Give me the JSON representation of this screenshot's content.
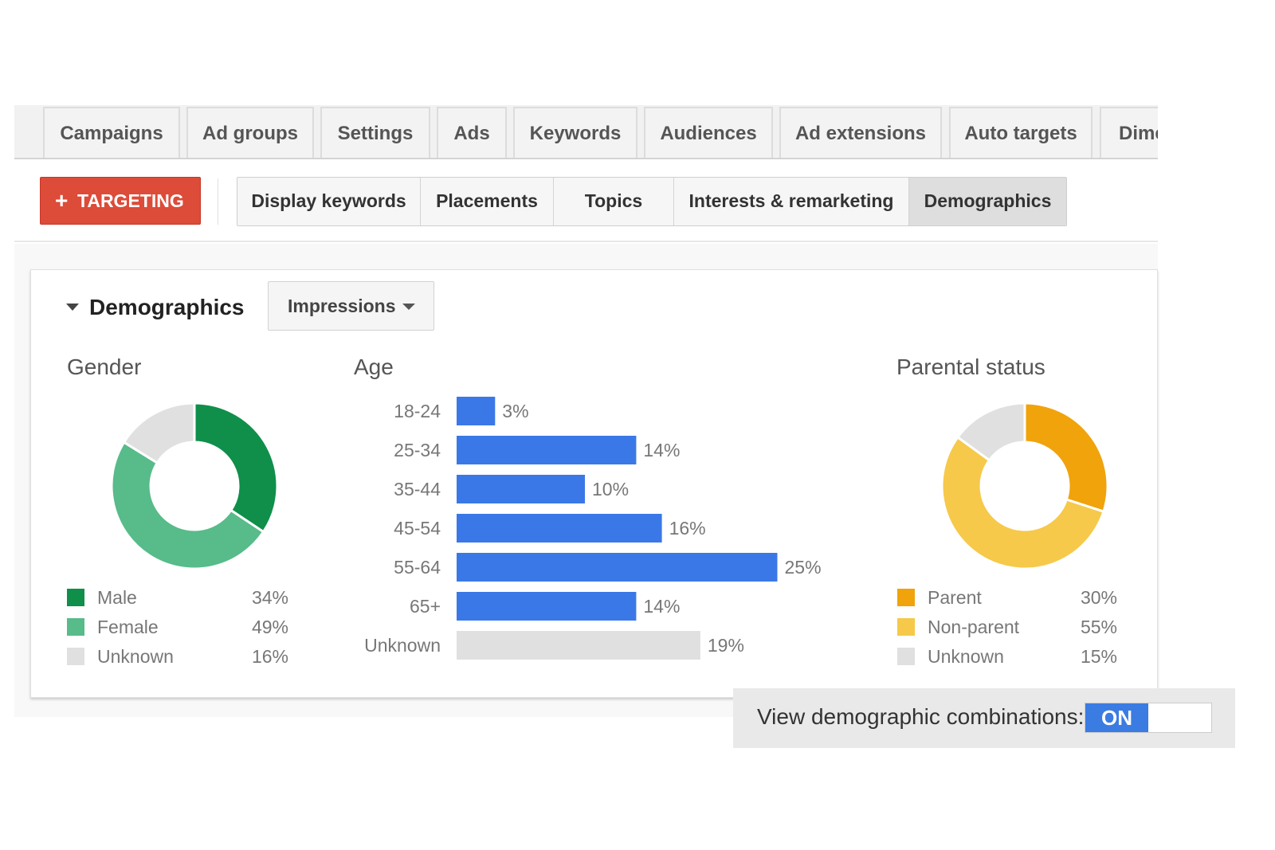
{
  "top_tabs": [
    "Campaigns",
    "Ad groups",
    "Settings",
    "Ads",
    "Keywords",
    "Audiences",
    "Ad extensions",
    "Auto targets",
    "Dime"
  ],
  "targeting_button": {
    "icon": "plus-icon",
    "label": "TARGETING",
    "color": "#dd4b39"
  },
  "sub_tabs": [
    "Display keywords",
    "Placements",
    "Topics",
    "Interests & remarketing",
    "Demographics"
  ],
  "active_sub_tab": "Demographics",
  "panel": {
    "title": "Demographics",
    "metric_dropdown": "Impressions"
  },
  "combinations": {
    "label": "View demographic combinations:",
    "toggle": "ON",
    "toggle_color": "#3b7ce3"
  },
  "chart_data": [
    {
      "type": "pie",
      "title": "Gender",
      "series": [
        {
          "name": "Male",
          "value": 34,
          "label": "34%",
          "color": "#0f8f4a"
        },
        {
          "name": "Female",
          "value": 49,
          "label": "49%",
          "color": "#57bb8a"
        },
        {
          "name": "Unknown",
          "value": 16,
          "label": "16%",
          "color": "#e0e0e0"
        }
      ]
    },
    {
      "type": "bar",
      "title": "Age",
      "orientation": "horizontal",
      "categories": [
        "18-24",
        "25-34",
        "35-44",
        "45-54",
        "55-64",
        "65+",
        "Unknown"
      ],
      "values": [
        3,
        14,
        10,
        16,
        25,
        14,
        19
      ],
      "labels": [
        "3%",
        "14%",
        "10%",
        "16%",
        "25%",
        "14%",
        "19%"
      ],
      "colors": [
        "#3b78e7",
        "#3b78e7",
        "#3b78e7",
        "#3b78e7",
        "#3b78e7",
        "#3b78e7",
        "#e0e0e0"
      ]
    },
    {
      "type": "pie",
      "title": "Parental status",
      "series": [
        {
          "name": "Parent",
          "value": 30,
          "label": "30%",
          "color": "#f0a30a"
        },
        {
          "name": "Non-parent",
          "value": 55,
          "label": "55%",
          "color": "#f6c94a"
        },
        {
          "name": "Unknown",
          "value": 15,
          "label": "15%",
          "color": "#e0e0e0"
        }
      ]
    }
  ]
}
